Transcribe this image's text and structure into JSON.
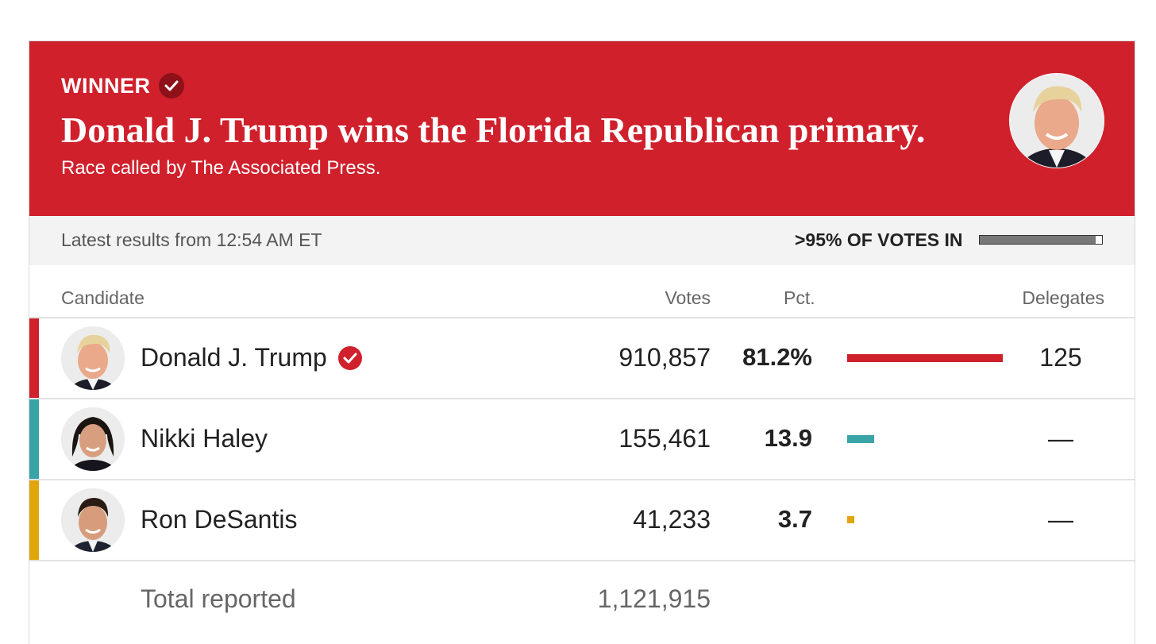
{
  "banner": {
    "winner_label": "WINNER",
    "headline": "Donald J. Trump wins the Florida Republican primary.",
    "subhead": "Race called by The Associated Press.",
    "color": "#cf202c"
  },
  "status": {
    "latest": "Latest results from 12:54 AM ET",
    "votes_in": ">95% OF VOTES IN",
    "votes_in_fraction": 0.95
  },
  "columns": {
    "candidate": "Candidate",
    "votes": "Votes",
    "pct": "Pct.",
    "delegates": "Delegates"
  },
  "candidates": [
    {
      "name": "Donald J. Trump",
      "votes": "910,857",
      "pct": "81.2%",
      "pct_value": 81.2,
      "delegates": "125",
      "color": "#cf202c",
      "winner": true
    },
    {
      "name": "Nikki Haley",
      "votes": "155,461",
      "pct": "13.9",
      "pct_value": 13.9,
      "delegates": "—",
      "color": "#3aa3a6",
      "winner": false
    },
    {
      "name": "Ron DeSantis",
      "votes": "41,233",
      "pct": "3.7",
      "pct_value": 3.7,
      "delegates": "—",
      "color": "#e2a60d",
      "winner": false
    }
  ],
  "total": {
    "label": "Total reported",
    "votes": "1,121,915"
  },
  "icons": {
    "winner_check": "check-circle-icon",
    "candidate_check": "check-circle-icon"
  }
}
